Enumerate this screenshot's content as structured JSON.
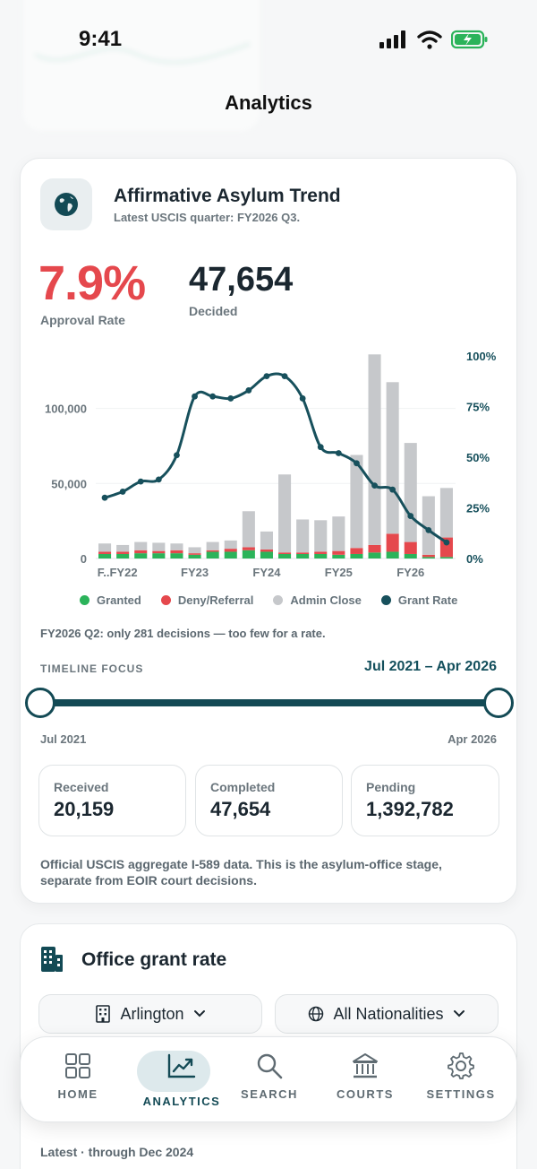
{
  "status": {
    "time": "9:41"
  },
  "page": {
    "title": "Analytics"
  },
  "trend_card": {
    "title": "Affirmative Asylum Trend",
    "subtitle": "Latest USCIS quarter: FY2026 Q3.",
    "approval_rate": "7.9%",
    "approval_label": "Approval Rate",
    "decided": "47,654",
    "decided_label": "Decided",
    "note": "FY2026 Q2: only 281 decisions — too few for a rate.",
    "timeline": {
      "label": "TIMELINE FOCUS",
      "range": "Jul 2021 – Apr 2026",
      "start": "Jul 2021",
      "end": "Apr 2026",
      "start_fraction": 0,
      "end_fraction": 1
    },
    "stats": [
      {
        "label": "Received",
        "value": "20,159"
      },
      {
        "label": "Completed",
        "value": "47,654"
      },
      {
        "label": "Pending",
        "value": "1,392,782"
      }
    ],
    "footnote": "Official USCIS aggregate I-589 data. This is the asylum-office stage, separate from EOIR court decisions."
  },
  "chart_data": {
    "type": "bar",
    "stacked": true,
    "categories": [
      "q1",
      "q2",
      "q3",
      "q4",
      "q5",
      "q6",
      "q7",
      "q8",
      "q9",
      "q10",
      "q11",
      "q12",
      "q13",
      "q14",
      "q15",
      "q16",
      "q17",
      "q18",
      "q19",
      "q20"
    ],
    "x_tick_labels": [
      "F..FY22",
      "FY23",
      "FY24",
      "FY25",
      "FY26"
    ],
    "series": [
      {
        "name": "Granted",
        "values": [
          3000,
          3000,
          3500,
          3500,
          3500,
          2500,
          4500,
          4500,
          5500,
          4500,
          3000,
          3000,
          3000,
          2500,
          3000,
          4000,
          4500,
          3000,
          1000,
          1000
        ]
      },
      {
        "name": "Deny/Referral",
        "values": [
          1500,
          1500,
          2000,
          1500,
          2000,
          1000,
          1000,
          2000,
          2000,
          1500,
          1000,
          1000,
          1500,
          2500,
          4000,
          5000,
          12000,
          8000,
          1500,
          13000
        ]
      },
      {
        "name": "Admin Close",
        "values": [
          5500,
          4500,
          5500,
          5500,
          4500,
          4000,
          5500,
          5500,
          24000,
          12000,
          52000,
          22000,
          21000,
          23000,
          62000,
          127000,
          101000,
          66000,
          39000,
          33000
        ]
      }
    ],
    "grant_rate": {
      "name": "Grant Rate",
      "values": [
        30,
        33,
        38,
        39,
        51,
        80,
        80,
        79,
        83,
        90,
        90,
        79,
        55,
        52,
        47,
        36,
        34,
        21,
        14,
        7.9
      ]
    },
    "ylim_left": [
      0,
      135000
    ],
    "yticks_left": [
      "0",
      "50,000",
      "100,000"
    ],
    "ylim_right": [
      0,
      100
    ],
    "yticks_right": [
      "0%",
      "25%",
      "50%",
      "75%",
      "100%"
    ],
    "colors": {
      "granted": "#2bb35a",
      "deny": "#e5484d",
      "admin": "#c6c8cb",
      "rate": "#17505c"
    },
    "legend_position": "bottom"
  },
  "office_card": {
    "title": "Office grant rate",
    "office_select": "Arlington",
    "nationality_select": "All Nationalities",
    "latest": "Latest · through Dec 2024"
  },
  "tabbar": {
    "tabs": [
      {
        "label": "HOME",
        "icon": "grid-icon"
      },
      {
        "label": "ANALYTICS",
        "icon": "chart-icon"
      },
      {
        "label": "SEARCH",
        "icon": "search-icon"
      },
      {
        "label": "COURTS",
        "icon": "bank-icon"
      },
      {
        "label": "SETTINGS",
        "icon": "gear-icon"
      }
    ],
    "active": "ANALYTICS"
  }
}
